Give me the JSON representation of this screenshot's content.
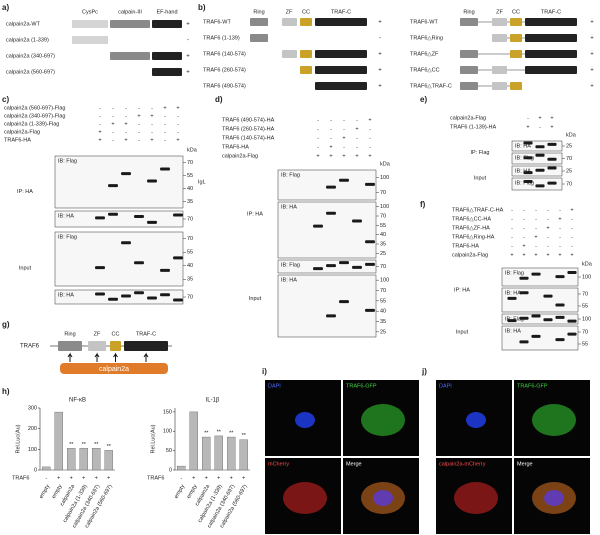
{
  "panel_labels": [
    "a)",
    "b)",
    "c)",
    "d)",
    "e)",
    "f)",
    "g)",
    "h)",
    "i)",
    "j)"
  ],
  "a": {
    "domains": [
      "CysPc",
      "calpain-III",
      "EF-hand"
    ],
    "rows": [
      {
        "label": "calpain2a-WT",
        "result": "+"
      },
      {
        "label": "calpain2a (1-339)",
        "result": "-"
      },
      {
        "label": "calpain2a (340-697)",
        "result": "+"
      },
      {
        "label": "calpain2a (560-697)",
        "result": "+"
      }
    ]
  },
  "b": {
    "left": {
      "domains": [
        "Ring",
        "ZF",
        "CC",
        "TRAF-C"
      ],
      "rows": [
        {
          "label": "TRAF6-WT",
          "result": "+"
        },
        {
          "label": "TRAF6 (1-139)",
          "result": "-"
        },
        {
          "label": "TRAF6 (140-574)",
          "result": "+"
        },
        {
          "label": "TRAF6 (260-574)",
          "result": "+"
        },
        {
          "label": "TRAF6 (490-574)",
          "result": "+"
        }
      ]
    },
    "right": {
      "domains": [
        "Ring",
        "ZF",
        "CC",
        "TRAF-C"
      ],
      "rows": [
        {
          "label": "TRAF6-WT",
          "result": "+"
        },
        {
          "label": "TRAF6△Ring",
          "result": "+"
        },
        {
          "label": "TRAF6△ZF",
          "result": "+"
        },
        {
          "label": "TRAF6△CC",
          "result": "+"
        },
        {
          "label": "TRAF6△TRAF-C",
          "result": "+"
        }
      ]
    }
  },
  "c": {
    "conditions": [
      {
        "label": "calpain2a (560-697)-Flag",
        "signs": [
          "-",
          "-",
          "-",
          "-",
          "-",
          "+",
          "+"
        ]
      },
      {
        "label": "calpain2a (340-697)-Flag",
        "signs": [
          "-",
          "-",
          "-",
          "+",
          "+",
          "-",
          "-"
        ]
      },
      {
        "label": "calpain2a (1-339)-Flag",
        "signs": [
          "-",
          "+",
          "+",
          "-",
          "-",
          "-",
          "-"
        ]
      },
      {
        "label": "calpain2a-Flag",
        "signs": [
          "+",
          "-",
          "-",
          "-",
          "-",
          "-",
          "-"
        ]
      },
      {
        "label": "TRAF6-HA",
        "signs": [
          "+",
          "-",
          "+",
          "-",
          "+",
          "-",
          "+"
        ]
      }
    ],
    "kda": "kDa",
    "side_note": "IgL",
    "groups": [
      {
        "label": "IP: HA",
        "blots": [
          {
            "ib": "IB: Flag",
            "markers": [
              "70",
              "55",
              "40",
              "35"
            ]
          },
          {
            "ib": "IB: HA",
            "markers": [
              "70"
            ]
          }
        ]
      },
      {
        "label": "Input",
        "blots": [
          {
            "ib": "IB: Flag",
            "markers": [
              "70",
              "55",
              "40",
              "35"
            ]
          },
          {
            "ib": "IB: HA",
            "markers": [
              "70"
            ]
          }
        ]
      }
    ]
  },
  "d": {
    "conditions": [
      {
        "label": "TRAF6 (490-574)-HA",
        "signs": [
          "-",
          "-",
          "-",
          "-",
          "+"
        ]
      },
      {
        "label": "TRAF6 (260-574)-HA",
        "signs": [
          "-",
          "-",
          "-",
          "+",
          "-"
        ]
      },
      {
        "label": "TRAF6 (140-574)-HA",
        "signs": [
          "-",
          "-",
          "+",
          "-",
          "-"
        ]
      },
      {
        "label": "TRAF6-HA",
        "signs": [
          "-",
          "+",
          "-",
          "-",
          "-"
        ]
      },
      {
        "label": "calpain2a-Flag",
        "signs": [
          "+",
          "+",
          "+",
          "+",
          "+"
        ]
      }
    ],
    "kda": "kDa",
    "groups": [
      {
        "label": "IP: HA",
        "blots": [
          {
            "ib": "IB: Flag",
            "markers": [
              "100",
              "70"
            ]
          },
          {
            "ib": "IB: HA",
            "markers": [
              "100",
              "70",
              "55",
              "40",
              "35",
              "25"
            ]
          }
        ]
      },
      {
        "label": "Input",
        "blots": [
          {
            "ib": "IB: Flag",
            "markers": [
              "70"
            ]
          },
          {
            "ib": "IB: HA",
            "markers": [
              "100",
              "70",
              "55",
              "40",
              "35",
              "25"
            ]
          }
        ]
      }
    ]
  },
  "e": {
    "conditions": [
      {
        "label": "calpain2a-Flag",
        "signs": [
          "-",
          "+",
          "+"
        ]
      },
      {
        "label": "TRAF6 (1-139)-HA",
        "signs": [
          "+",
          "-",
          "+"
        ]
      }
    ],
    "kda": "kDa",
    "groups": [
      {
        "label": "IP: Flag",
        "blots": [
          {
            "ib": "IB: HA",
            "markers": [
              "25"
            ]
          },
          {
            "ib": "IB: Flag",
            "markers": [
              "70"
            ]
          }
        ]
      },
      {
        "label": "Input",
        "blots": [
          {
            "ib": "IB: HA",
            "markers": [
              "25"
            ]
          },
          {
            "ib": "IB: Flag",
            "markers": [
              "70"
            ]
          }
        ]
      }
    ]
  },
  "f": {
    "conditions": [
      {
        "label": "TRAF6△TRAF-C-HA",
        "signs": [
          "-",
          "-",
          "-",
          "-",
          "-",
          "+"
        ]
      },
      {
        "label": "TRAF6△CC-HA",
        "signs": [
          "-",
          "-",
          "-",
          "-",
          "+",
          "-"
        ]
      },
      {
        "label": "TRAF6△ZF-HA",
        "signs": [
          "-",
          "-",
          "-",
          "+",
          "-",
          "-"
        ]
      },
      {
        "label": "TRAF6△Ring-HA",
        "signs": [
          "-",
          "-",
          "+",
          "-",
          "-",
          "-"
        ]
      },
      {
        "label": "TRAF6-HA",
        "signs": [
          "-",
          "+",
          "-",
          "-",
          "-",
          "-"
        ]
      },
      {
        "label": "calpain2a-Flag",
        "signs": [
          "+",
          "+",
          "+",
          "+",
          "+",
          "+"
        ]
      }
    ],
    "kda": "kDa",
    "groups": [
      {
        "label": "IP: HA",
        "blots": [
          {
            "ib": "IB: Flag",
            "markers": [
              "100"
            ]
          },
          {
            "ib": "IB: HA",
            "markers": [
              "70",
              "55"
            ]
          }
        ]
      },
      {
        "label": "Input",
        "blots": [
          {
            "ib": "IB: Flag",
            "markers": [
              "100"
            ]
          },
          {
            "ib": "IB: HA",
            "markers": [
              "70",
              "55"
            ]
          }
        ]
      }
    ]
  },
  "g": {
    "protein": "TRAF6",
    "domains": [
      "Ring",
      "ZF",
      "CC",
      "TRAF-C"
    ],
    "partner": "calpain2a"
  },
  "chart_data": [
    {
      "type": "bar",
      "title": "NF-κB",
      "y_label": "Rel.Luc(Au)",
      "color": "#b8b8b8",
      "categories": [
        "empty",
        "empty",
        "calpain2a",
        "calpain2a (1-339)",
        "calpain2a (340-697)",
        "calpain2a (560-697)"
      ],
      "values": [
        15,
        280,
        105,
        105,
        105,
        95
      ],
      "annotations": [
        null,
        null,
        "**",
        "**",
        "**",
        "**"
      ],
      "row_label": "TRAF6",
      "row_signs": [
        "-",
        "+",
        "+",
        "+",
        "+",
        "+"
      ],
      "ylim": [
        0,
        300
      ],
      "yticks": [
        0,
        100,
        200,
        300
      ]
    },
    {
      "type": "bar",
      "title": "IL-1β",
      "y_label": "Rel.Luc(Au)",
      "color": "#b8b8b8",
      "categories": [
        "empty",
        "empty",
        "calpain2a",
        "calpain2a (1-339)",
        "calpain2a (340-697)",
        "calpain2a (560-697)"
      ],
      "values": [
        10,
        150,
        85,
        88,
        85,
        78
      ],
      "annotations": [
        null,
        null,
        "**",
        "**",
        "**",
        "**"
      ],
      "row_label": "TRAF6",
      "row_signs": [
        "-",
        "+",
        "+",
        "+",
        "+",
        "+"
      ],
      "ylim": [
        0,
        160
      ],
      "yticks": [
        0,
        50,
        100,
        150
      ]
    }
  ],
  "i": {
    "channels": [
      "DAPI",
      "TRAF6-GFP",
      "mCherry",
      "Merge"
    ]
  },
  "j": {
    "channels": [
      "DAPI",
      "TRAF6-GFP",
      "calpain2a-mCherry",
      "Merge"
    ]
  }
}
